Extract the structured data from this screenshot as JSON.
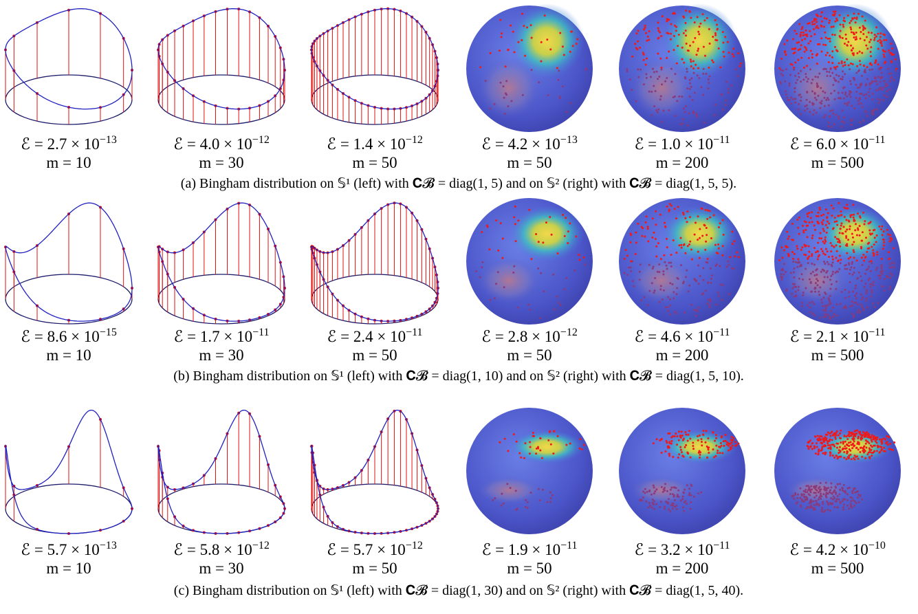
{
  "rows": [
    {
      "panels": [
        {
          "error": "ℰ = 2.7 × 10",
          "exponent": "−13",
          "m": "m = 10"
        },
        {
          "error": "ℰ = 4.0 × 10",
          "exponent": "−12",
          "m": "m = 30"
        },
        {
          "error": "ℰ = 1.4 × 10",
          "exponent": "−12",
          "m": "m = 50"
        },
        {
          "error": "ℰ = 4.2 × 10",
          "exponent": "−13",
          "m": "m = 50"
        },
        {
          "error": "ℰ = 1.0 × 10",
          "exponent": "−11",
          "m": "m = 200"
        },
        {
          "error": "ℰ = 6.0 × 10",
          "exponent": "−11",
          "m": "m = 500"
        }
      ],
      "caption": "(a) Bingham distribution on 𝕊¹ (left) with 𝐂𝓑 = diag(1, 5) and on 𝕊² (right) with 𝐂𝓑 = diag(1, 5, 5)."
    },
    {
      "panels": [
        {
          "error": "ℰ = 8.6 × 10",
          "exponent": "−15",
          "m": "m = 10"
        },
        {
          "error": "ℰ = 1.7 × 10",
          "exponent": "−11",
          "m": "m = 30"
        },
        {
          "error": "ℰ = 2.4 × 10",
          "exponent": "−11",
          "m": "m = 50"
        },
        {
          "error": "ℰ = 2.8 × 10",
          "exponent": "−12",
          "m": "m = 50"
        },
        {
          "error": "ℰ = 4.6 × 10",
          "exponent": "−11",
          "m": "m = 200"
        },
        {
          "error": "ℰ = 2.1 × 10",
          "exponent": "−11",
          "m": "m = 500"
        }
      ],
      "caption": "(b) Bingham distribution on 𝕊¹ (left) with 𝐂𝓑 = diag(1, 10) and on 𝕊² (right) with 𝐂𝓑 = diag(1, 5, 10)."
    },
    {
      "panels": [
        {
          "error": "ℰ = 5.7 × 10",
          "exponent": "−13",
          "m": "m = 10"
        },
        {
          "error": "ℰ = 5.8 × 10",
          "exponent": "−12",
          "m": "m = 30"
        },
        {
          "error": "ℰ = 5.7 × 10",
          "exponent": "−12",
          "m": "m = 50"
        },
        {
          "error": "ℰ = 1.9 × 10",
          "exponent": "−11",
          "m": "m = 50"
        },
        {
          "error": "ℰ = 3.2 × 10",
          "exponent": "−11",
          "m": "m = 200"
        },
        {
          "error": "ℰ = 4.2 × 10",
          "exponent": "−10",
          "m": "m = 500"
        }
      ],
      "caption": "(c) Bingham distribution on 𝕊¹ (left) with 𝐂𝓑 = diag(1, 30) and on 𝕊² (right) with 𝐂𝓑 = diag(1, 5, 40)."
    }
  ]
}
